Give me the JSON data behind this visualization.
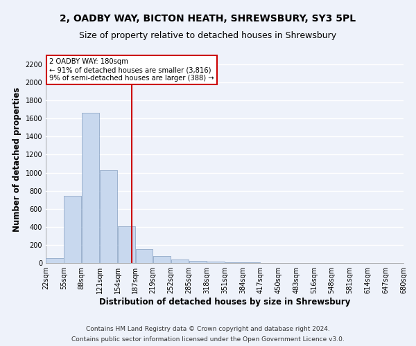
{
  "title1": "2, OADBY WAY, BICTON HEATH, SHREWSBURY, SY3 5PL",
  "title2": "Size of property relative to detached houses in Shrewsbury",
  "xlabel": "Distribution of detached houses by size in Shrewsbury",
  "ylabel": "Number of detached properties",
  "footer1": "Contains HM Land Registry data © Crown copyright and database right 2024.",
  "footer2": "Contains public sector information licensed under the Open Government Licence v3.0.",
  "annotation_line1": "2 OADBY WAY: 180sqm",
  "annotation_line2": "← 91% of detached houses are smaller (3,816)",
  "annotation_line3": "9% of semi-detached houses are larger (388) →",
  "property_size": 180,
  "bin_edges": [
    22,
    55,
    88,
    121,
    154,
    187,
    219,
    252,
    285,
    318,
    351,
    384,
    417,
    450,
    483,
    516,
    548,
    581,
    614,
    647,
    680
  ],
  "bar_heights": [
    50,
    740,
    1660,
    1030,
    410,
    150,
    80,
    40,
    25,
    15,
    10,
    5,
    0,
    0,
    0,
    0,
    0,
    0,
    0,
    0
  ],
  "bar_color": "#c8d8ee",
  "bar_edge_color": "#9ab0cc",
  "vline_color": "#cc0000",
  "vline_x": 180,
  "ylim": [
    0,
    2300
  ],
  "yticks": [
    0,
    200,
    400,
    600,
    800,
    1000,
    1200,
    1400,
    1600,
    1800,
    2000,
    2200
  ],
  "background_color": "#eef2fa",
  "grid_color": "#ffffff",
  "annotation_box_color": "#ffffff",
  "annotation_box_edge": "#cc0000",
  "title_fontsize": 10,
  "subtitle_fontsize": 9,
  "axis_label_fontsize": 8.5,
  "tick_fontsize": 7,
  "footer_fontsize": 6.5
}
